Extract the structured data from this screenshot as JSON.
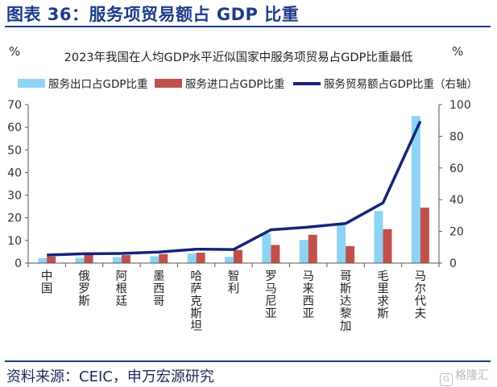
{
  "figure": {
    "title": "图表 36：服务项贸易额占 GDP 比重",
    "source": "资料来源：CEIC，申万宏源研究",
    "watermark_box": "G",
    "watermark": "格隆汇"
  },
  "chart_data": {
    "type": "bar",
    "title": "2023年我国在人均GDP水平近似国家中服务项贸易占GDP比重最低",
    "left_unit": "%",
    "right_unit": "%",
    "categories": [
      "中国",
      "俄罗斯",
      "阿根廷",
      "墨西哥",
      "哈萨克斯坦",
      "智利",
      "罗马尼亚",
      "马来西亚",
      "哥斯达黎加",
      "毛里求斯",
      "马尔代夫"
    ],
    "series": [
      {
        "name": "服务出口占GDP比重",
        "type": "bar",
        "axis": "left",
        "color": "#8fd3f4",
        "values": [
          2.2,
          2.3,
          2.6,
          3.0,
          4.2,
          2.8,
          13.0,
          10.2,
          17.5,
          23.0,
          65.0
        ]
      },
      {
        "name": "服务进口占GDP比重",
        "type": "bar",
        "axis": "left",
        "color": "#c0504d",
        "values": [
          2.9,
          3.6,
          3.5,
          4.0,
          4.6,
          5.8,
          8.0,
          12.5,
          7.5,
          15.0,
          24.5
        ]
      },
      {
        "name": "服务贸易额占GDP比重（右轴）",
        "type": "line",
        "axis": "right",
        "color": "#15247a",
        "values": [
          5.1,
          5.9,
          6.1,
          7.0,
          8.8,
          8.6,
          21.0,
          22.7,
          25.0,
          38.0,
          89.5
        ]
      }
    ],
    "left_axis": {
      "min": 0,
      "max": 70,
      "ticks": [
        0,
        10,
        20,
        30,
        40,
        50,
        60,
        70
      ]
    },
    "right_axis": {
      "min": 0,
      "max": 100,
      "ticks": [
        0,
        20,
        40,
        60,
        80,
        100
      ]
    },
    "legend_position": "top",
    "grid": false
  }
}
